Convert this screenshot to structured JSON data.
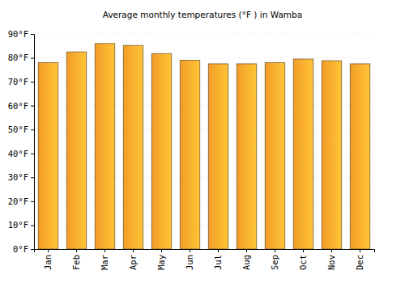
{
  "chart_data": {
    "type": "bar",
    "title": "Average monthly temperatures (°F ) in Wamba",
    "categories": [
      "Jan",
      "Feb",
      "Mar",
      "Apr",
      "May",
      "Jun",
      "Jul",
      "Aug",
      "Sep",
      "Oct",
      "Nov",
      "Dec"
    ],
    "values": [
      78,
      82.5,
      86,
      85.2,
      81.8,
      79,
      77.5,
      77.5,
      78,
      79.5,
      78.8,
      77.5
    ],
    "color": "#ffa52a",
    "ylim": [
      0,
      90
    ],
    "yticks": [
      {
        "value": 0,
        "label": "0°F"
      },
      {
        "value": 10,
        "label": "10°F"
      },
      {
        "value": 20,
        "label": "20°F"
      },
      {
        "value": 30,
        "label": "30°F"
      },
      {
        "value": 40,
        "label": "40°F"
      },
      {
        "value": 50,
        "label": "50°F"
      },
      {
        "value": 60,
        "label": "60°F"
      },
      {
        "value": 70,
        "label": "70°F"
      },
      {
        "value": 80,
        "label": "80°F"
      },
      {
        "value": 90,
        "label": "90°F"
      }
    ],
    "grid": true
  }
}
